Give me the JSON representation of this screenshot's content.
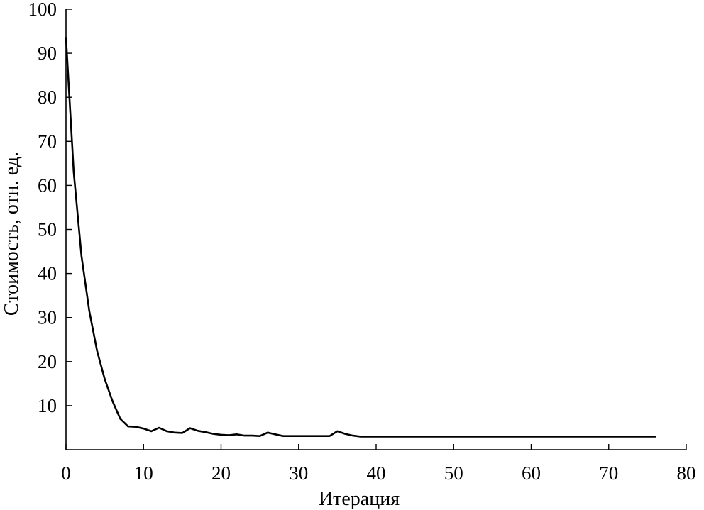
{
  "chart_data": {
    "type": "line",
    "title": "",
    "xlabel": "Итерация",
    "ylabel": "Стоимость, отн. ед.",
    "xlim": [
      0,
      80
    ],
    "ylim": [
      0,
      100
    ],
    "x_ticks": [
      0,
      10,
      20,
      30,
      40,
      50,
      60,
      70,
      80
    ],
    "x_tick_labels": [
      "0",
      "10",
      "20",
      "30",
      "40",
      "50",
      "60",
      "70",
      "80"
    ],
    "y_ticks": [
      10,
      20,
      30,
      40,
      50,
      60,
      70,
      80,
      90,
      100
    ],
    "y_tick_labels": [
      "10",
      "20",
      "30",
      "40",
      "50",
      "60",
      "70",
      "80",
      "90",
      "100"
    ],
    "grid": false,
    "line_color": "#000000",
    "series": [
      {
        "x": [
          0,
          1,
          2,
          3,
          4,
          5,
          6,
          7,
          8,
          9,
          10,
          11,
          12,
          13,
          14,
          15,
          16,
          17,
          18,
          19,
          20,
          21,
          22,
          23,
          24,
          25,
          26,
          27,
          28,
          29,
          30,
          31,
          32,
          33,
          34,
          35,
          36,
          37,
          38,
          39,
          40,
          45,
          50,
          55,
          60,
          65,
          70,
          76
        ],
        "y": [
          93.5,
          63,
          44,
          31.5,
          22.5,
          16,
          11,
          7,
          5.3,
          5.2,
          4.8,
          4.2,
          5,
          4.2,
          3.9,
          3.8,
          4.9,
          4.3,
          4,
          3.6,
          3.4,
          3.3,
          3.5,
          3.2,
          3.2,
          3.1,
          3.9,
          3.5,
          3.1,
          3.1,
          3.1,
          3.1,
          3.1,
          3.1,
          3.1,
          4.2,
          3.6,
          3.2,
          3,
          3,
          3,
          3,
          3,
          3,
          3,
          3,
          3,
          3
        ]
      }
    ]
  }
}
